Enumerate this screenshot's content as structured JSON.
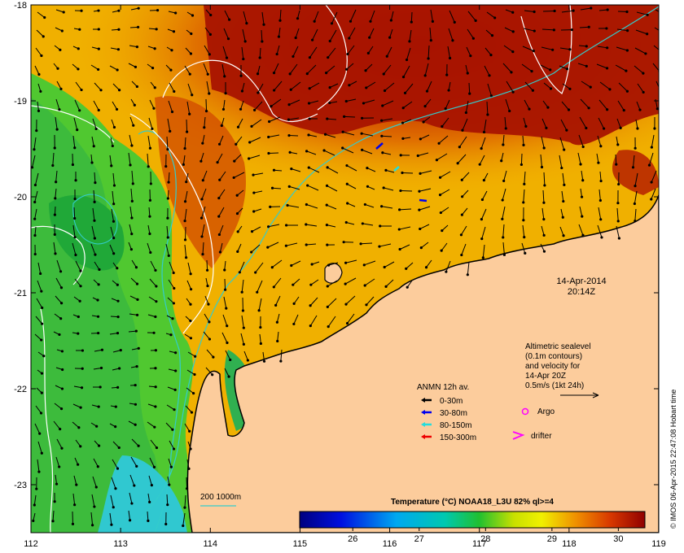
{
  "map": {
    "lon_range": [
      112,
      119
    ],
    "lat_range": [
      -23.5,
      -18
    ],
    "lon_ticks": [
      "112",
      "113",
      "114",
      "115",
      "116",
      "117",
      "118",
      "119"
    ],
    "lat_ticks": [
      "-18",
      "-19",
      "-20",
      "-21",
      "-22",
      "-23"
    ],
    "datetime": {
      "date": "14-Apr-2014",
      "time": "20:14Z"
    },
    "sealevel_note": [
      "Altimetric sealevel",
      "(0.1m contours)",
      "and velocity for",
      "14-Apr 20Z",
      "0.5m/s (1kt 24h)"
    ],
    "anmn_legend": {
      "title": "ANMN 12h av.",
      "items": [
        {
          "label": "0-30m",
          "color": "#000000"
        },
        {
          "label": "30-80m",
          "color": "#0000ee"
        },
        {
          "label": "80-150m",
          "color": "#22dddd"
        },
        {
          "label": "150-300m",
          "color": "#ee0000"
        }
      ]
    },
    "markers": {
      "argo": "Argo",
      "drifter": "drifter",
      "argo_color": "#ff00ff",
      "drifter_color": "#ff00ff"
    },
    "isobath_label": "200 1000m",
    "colorbar": {
      "title": "Temperature (°C) NOAA18_L3U 82% ql>=4",
      "min": 25.2,
      "max": 30.4,
      "ticks": [
        "26",
        "27",
        "28",
        "29",
        "30"
      ],
      "tick_values": [
        26,
        27,
        28,
        29,
        30
      ]
    },
    "credit": "© IMOS 06-Apr-2015 22:47:08 Hobart time",
    "colors": {
      "land": "#fccc9c",
      "ocean_warm": "#a00f00",
      "ocean_cool": "#22c4d8",
      "isobath": "#33cccc",
      "contour": "#ffffff"
    }
  }
}
